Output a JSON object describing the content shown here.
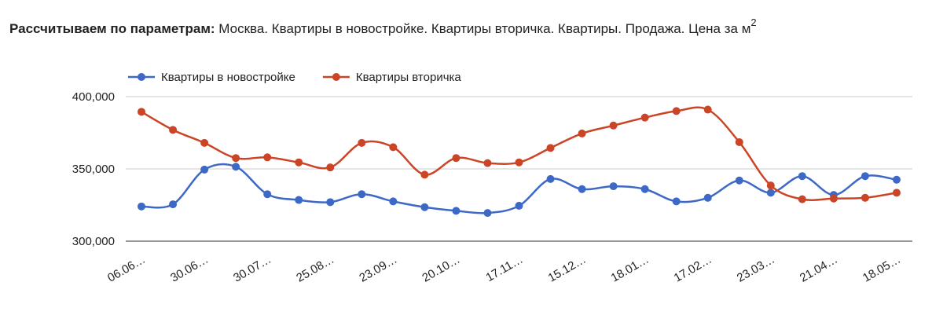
{
  "chart_data": {
    "type": "line",
    "title": {
      "label": "Рассчитываем по параметрам:",
      "text": "Москва. Квартиры в новостройке. Квартиры вторичка. Квартиры. Продажа. Цена за м",
      "superscript": "2"
    },
    "categories": [
      "06.06…",
      null,
      "30.06…",
      null,
      "30.07…",
      null,
      "25.08…",
      null,
      "23.09…",
      null,
      "20.10…",
      null,
      "17.11…",
      null,
      "15.12…",
      null,
      "18.01…",
      null,
      "17.02…",
      null,
      "23.03…",
      null,
      "21.04…",
      null,
      "18.05…"
    ],
    "series": [
      {
        "name": "Квартиры в новостройке",
        "color": "#3e68c6",
        "values": [
          324000,
          325500,
          349500,
          351500,
          332500,
          328500,
          327000,
          332500,
          327500,
          323500,
          321000,
          319500,
          324500,
          343000,
          336000,
          338000,
          336000,
          327500,
          330000,
          342000,
          333500,
          345000,
          332000,
          345000,
          342500
        ]
      },
      {
        "name": "Квартиры вторичка",
        "color": "#cc4426",
        "values": [
          389500,
          377000,
          368000,
          357500,
          358000,
          354500,
          351000,
          368000,
          365000,
          346000,
          357500,
          354000,
          354500,
          364500,
          374500,
          380000,
          385500,
          390000,
          391000,
          368500,
          338500,
          329000,
          329500,
          330000,
          333500
        ]
      }
    ],
    "ylim": [
      300000,
      400000
    ],
    "yticks": [
      {
        "value": 300000,
        "label": "300,000"
      },
      {
        "value": 350000,
        "label": "350,000"
      },
      {
        "value": 400000,
        "label": "400,000"
      }
    ],
    "grid": true,
    "legend": "top"
  }
}
